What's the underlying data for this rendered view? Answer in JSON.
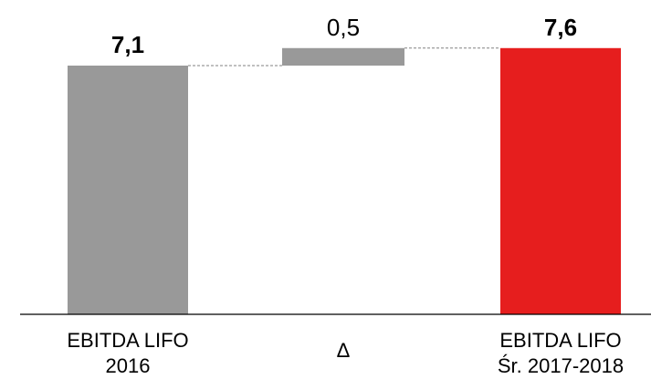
{
  "chart_data": {
    "type": "bar",
    "subtype": "waterfall",
    "categories": [
      [
        "EBITDA LIFO",
        "2016"
      ],
      [
        "Δ"
      ],
      [
        "EBITDA LIFO",
        "Śr. 2017-2018"
      ]
    ],
    "bars": [
      {
        "kind": "total",
        "value": 7.1,
        "label": "7,1",
        "label_bold": true,
        "color": "#999999"
      },
      {
        "kind": "delta",
        "value": 0.5,
        "label": "0,5",
        "label_bold": false,
        "color": "#999999"
      },
      {
        "kind": "total",
        "value": 7.6,
        "label": "7,6",
        "label_bold": true,
        "color": "#e61e1e"
      }
    ],
    "connectors": "dashed",
    "axis_line_color": "#000000",
    "grid": false,
    "legend": "none"
  }
}
